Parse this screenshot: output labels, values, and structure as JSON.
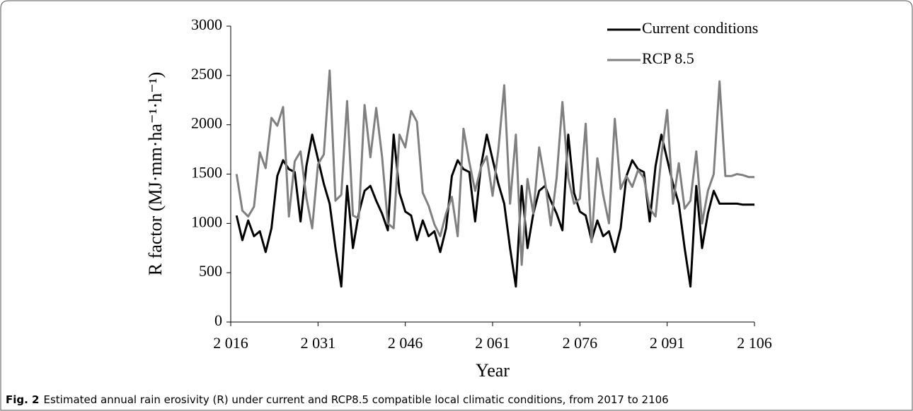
{
  "chart_data": {
    "type": "line",
    "x_label": "Year",
    "y_label": "R factor (MJ·mm·ha⁻¹·h⁻¹)",
    "caption_label": "Fig. 2",
    "caption_text": "Estimated annual rain erosivity (R) under current and RCP8.5 compatible local climatic conditions, from 2017 to 2106",
    "x": [
      2017,
      2018,
      2019,
      2020,
      2021,
      2022,
      2023,
      2024,
      2025,
      2026,
      2027,
      2028,
      2029,
      2030,
      2031,
      2032,
      2033,
      2034,
      2035,
      2036,
      2037,
      2038,
      2039,
      2040,
      2041,
      2042,
      2043,
      2044,
      2045,
      2046,
      2047,
      2048,
      2049,
      2050,
      2051,
      2052,
      2053,
      2054,
      2055,
      2056,
      2057,
      2058,
      2059,
      2060,
      2061,
      2062,
      2063,
      2064,
      2065,
      2066,
      2067,
      2068,
      2069,
      2070,
      2071,
      2072,
      2073,
      2074,
      2075,
      2076,
      2077,
      2078,
      2079,
      2080,
      2081,
      2082,
      2083,
      2084,
      2085,
      2086,
      2087,
      2088,
      2089,
      2090,
      2091,
      2092,
      2093,
      2094,
      2095,
      2096,
      2097,
      2098,
      2099,
      2100,
      2101,
      2102,
      2103,
      2104,
      2105,
      2106
    ],
    "series": [
      {
        "name": "Current conditions",
        "color": "#000000",
        "values": [
          1080,
          830,
          1030,
          870,
          920,
          710,
          950,
          1480,
          1640,
          1550,
          1520,
          1020,
          1580,
          1900,
          1650,
          1400,
          1200,
          750,
          360,
          1380,
          750,
          1100,
          1330,
          1380,
          1230,
          1100,
          930,
          1900,
          1310,
          1120,
          1080,
          830,
          1030,
          870,
          920,
          710,
          950,
          1480,
          1640,
          1550,
          1520,
          1020,
          1580,
          1900,
          1650,
          1400,
          1200,
          750,
          360,
          1380,
          750,
          1100,
          1330,
          1380,
          1230,
          1100,
          930,
          1900,
          1310,
          1120,
          1080,
          830,
          1030,
          870,
          920,
          710,
          950,
          1480,
          1640,
          1550,
          1520,
          1020,
          1580,
          1900,
          1650,
          1400,
          1200,
          750,
          360,
          1380,
          750,
          1100,
          1330,
          1200,
          1200,
          1200,
          1200,
          1190,
          1190,
          1190
        ]
      },
      {
        "name": "RCP 8.5",
        "color": "#808080",
        "values": [
          1500,
          1130,
          1070,
          1170,
          1720,
          1560,
          2070,
          1990,
          2180,
          1070,
          1630,
          1730,
          1260,
          950,
          1600,
          1700,
          2550,
          1230,
          1290,
          2240,
          1080,
          1050,
          2200,
          1670,
          2170,
          1680,
          1000,
          950,
          1900,
          1770,
          2140,
          2030,
          1310,
          1180,
          990,
          870,
          1100,
          1270,
          870,
          1960,
          1620,
          1330,
          1570,
          1680,
          1280,
          1750,
          2400,
          1200,
          1900,
          580,
          1450,
          1100,
          1770,
          1430,
          980,
          1460,
          2230,
          1460,
          1200,
          1250,
          2010,
          810,
          1660,
          1290,
          1000,
          2060,
          1350,
          1480,
          1370,
          1540,
          1460,
          1150,
          1070,
          1680,
          2150,
          1200,
          1610,
          1150,
          1230,
          1730,
          1000,
          1330,
          1500,
          2440,
          1480,
          1480,
          1500,
          1490,
          1470,
          1470
        ]
      }
    ],
    "xlim": [
      2016,
      2106
    ],
    "xticks": [
      {
        "value": 2016,
        "label": "2 016"
      },
      {
        "value": 2031,
        "label": "2 031"
      },
      {
        "value": 2046,
        "label": "2 046"
      },
      {
        "value": 2061,
        "label": "2 061"
      },
      {
        "value": 2076,
        "label": "2 076"
      },
      {
        "value": 2091,
        "label": "2 091"
      },
      {
        "value": 2106,
        "label": "2 106"
      }
    ],
    "ylim": [
      0,
      3000
    ],
    "yticks": [
      0,
      500,
      1000,
      1500,
      2000,
      2500,
      3000
    ],
    "legend": "upper right"
  }
}
